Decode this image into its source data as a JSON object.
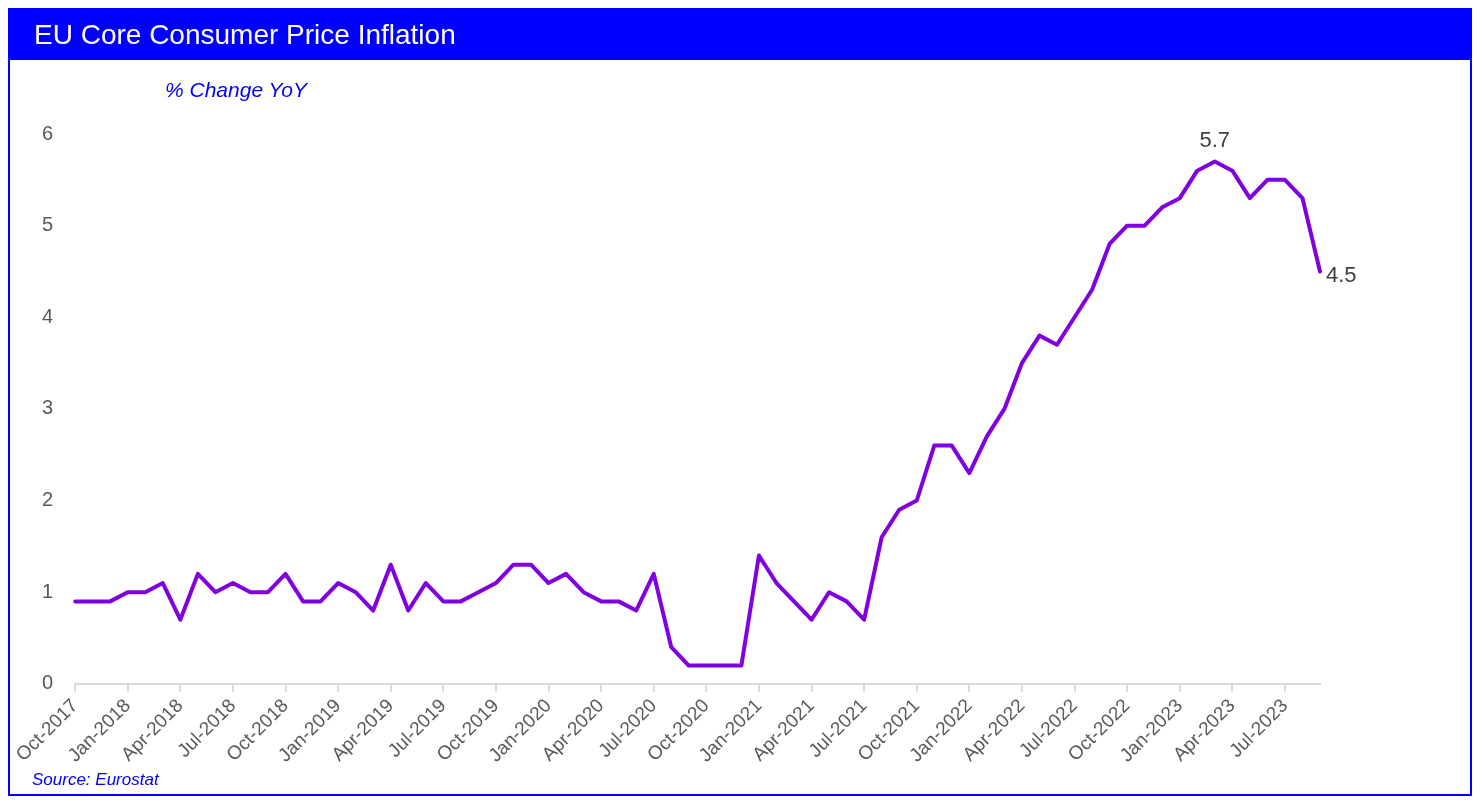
{
  "chart_data": {
    "type": "line",
    "title": "EU Core Consumer Price Inflation",
    "ylabel": "% Change YoY",
    "categories": [
      "Oct-2017",
      null,
      null,
      "Jan-2018",
      null,
      null,
      "Apr-2018",
      null,
      null,
      "Jul-2018",
      null,
      null,
      "Oct-2018",
      null,
      null,
      "Jan-2019",
      null,
      null,
      "Apr-2019",
      null,
      null,
      "Jul-2019",
      null,
      null,
      "Oct-2019",
      null,
      null,
      "Jan-2020",
      null,
      null,
      "Apr-2020",
      null,
      null,
      "Jul-2020",
      null,
      null,
      "Oct-2020",
      null,
      null,
      "Jan-2021",
      null,
      null,
      "Apr-2021",
      null,
      null,
      "Jul-2021",
      null,
      null,
      "Oct-2021",
      null,
      null,
      "Jan-2022",
      null,
      null,
      "Apr-2022",
      null,
      null,
      "Jul-2022",
      null,
      null,
      "Oct-2022",
      null,
      null,
      "Jan-2023",
      null,
      null,
      "Apr-2023",
      null,
      null,
      "Jul-2023",
      null,
      null
    ],
    "series": [
      {
        "color": "#8000e0",
        "values": [
          0.9,
          0.9,
          0.9,
          1.0,
          1.0,
          1.1,
          0.7,
          1.2,
          1.0,
          1.1,
          1.0,
          1.0,
          1.2,
          0.9,
          0.9,
          1.1,
          1.0,
          0.8,
          1.3,
          0.8,
          1.1,
          0.9,
          0.9,
          1.0,
          1.1,
          1.3,
          1.3,
          1.1,
          1.2,
          1.0,
          0.9,
          0.9,
          0.8,
          1.2,
          0.4,
          0.2,
          0.2,
          0.2,
          0.2,
          1.4,
          1.1,
          0.9,
          0.7,
          1.0,
          0.9,
          0.7,
          1.6,
          1.9,
          2.0,
          2.6,
          2.6,
          2.3,
          2.7,
          3.0,
          3.5,
          3.8,
          3.7,
          4.0,
          4.3,
          4.8,
          5.0,
          5.0,
          5.2,
          5.3,
          5.6,
          5.7,
          5.6,
          5.3,
          5.5,
          5.5,
          5.3,
          4.5
        ],
        "value_labels": [
          null,
          null,
          null,
          null,
          null,
          null,
          null,
          null,
          null,
          null,
          null,
          null,
          null,
          null,
          null,
          null,
          null,
          null,
          null,
          null,
          null,
          null,
          null,
          null,
          null,
          null,
          null,
          null,
          null,
          null,
          null,
          null,
          null,
          null,
          null,
          null,
          null,
          null,
          null,
          null,
          null,
          null,
          null,
          null,
          null,
          null,
          null,
          null,
          null,
          null,
          null,
          null,
          null,
          null,
          null,
          null,
          null,
          null,
          null,
          null,
          null,
          null,
          null,
          null,
          null,
          "5.7",
          null,
          null,
          null,
          null,
          null,
          "4.5"
        ]
      }
    ],
    "ylim": [
      0,
      6
    ],
    "yticks": [
      0,
      1,
      2,
      3,
      4,
      5,
      6
    ],
    "grid": false,
    "legend": false,
    "marker": "none",
    "line_style": "solid",
    "annotations": [
      "Source: Eurostat"
    ]
  }
}
